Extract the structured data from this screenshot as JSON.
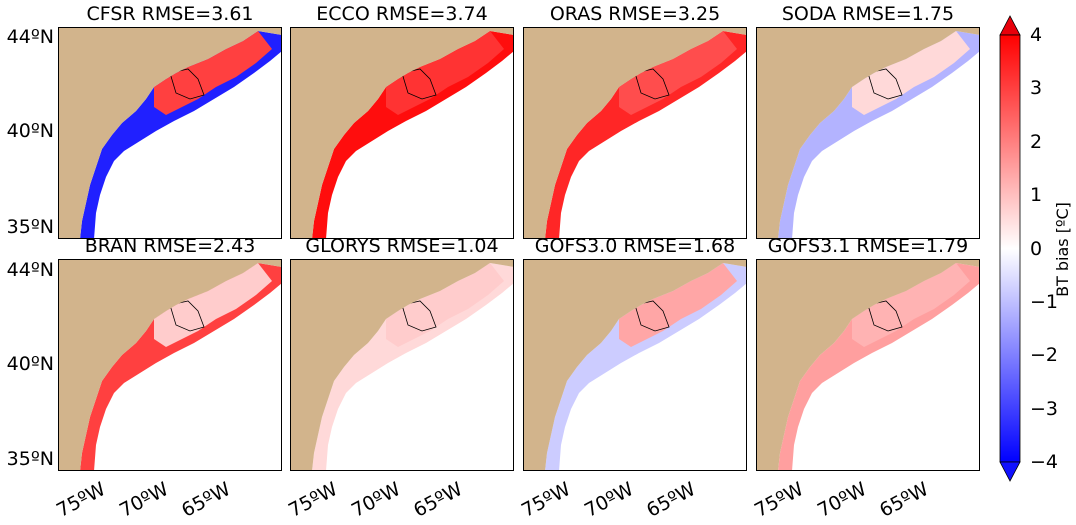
{
  "colors": {
    "land": "#D2B48C",
    "ocean": "#FFFFFF",
    "warm": "#E8000B",
    "cold": "#1E1EFF"
  },
  "chart_data": {
    "type": "heatmap",
    "panels": [
      {
        "title": "CFSR RMSE=3.61",
        "model": "CFSR",
        "rmse": 3.61,
        "shelf_bias": -3.5,
        "inner_bias": 3.0
      },
      {
        "title": "ECCO RMSE=3.74",
        "model": "ECCO",
        "rmse": 3.74,
        "shelf_bias": 3.8,
        "inner_bias": 3.2
      },
      {
        "title": "ORAS RMSE=3.25",
        "model": "ORAS",
        "rmse": 3.25,
        "shelf_bias": 3.4,
        "inner_bias": 2.8
      },
      {
        "title": "SODA RMSE=1.75",
        "model": "SODA",
        "rmse": 1.75,
        "shelf_bias": -1.2,
        "inner_bias": 0.6
      },
      {
        "title": "BRAN RMSE=2.43",
        "model": "BRAN",
        "rmse": 2.43,
        "shelf_bias": 3.0,
        "inner_bias": 0.8
      },
      {
        "title": "GLORYS RMSE=1.04",
        "model": "GLORYS",
        "rmse": 1.04,
        "shelf_bias": 0.6,
        "inner_bias": 0.8
      },
      {
        "title": "GOFS3.0 RMSE=1.68",
        "model": "GOFS3.0",
        "rmse": 1.68,
        "shelf_bias": -0.8,
        "inner_bias": 1.4
      },
      {
        "title": "GOFS3.1 RMSE=1.79",
        "model": "GOFS3.1",
        "rmse": 1.79,
        "shelf_bias": 1.5,
        "inner_bias": 1.2
      }
    ],
    "y_ticks": [
      "44ºN",
      "40ºN",
      "35ºN"
    ],
    "y_tick_values": [
      44,
      40,
      35
    ],
    "x_ticks": [
      "75ºW",
      "70ºW",
      "65ºW"
    ],
    "x_tick_values": [
      -75,
      -70,
      -65
    ],
    "colorbar": {
      "label": "BT bias [ºC]",
      "min": -4,
      "max": 4,
      "ticks": [
        "4",
        "3",
        "2",
        "1",
        "0",
        "−1",
        "−2",
        "−3",
        "−4"
      ],
      "extend": "both",
      "cmap": "bwr"
    }
  }
}
